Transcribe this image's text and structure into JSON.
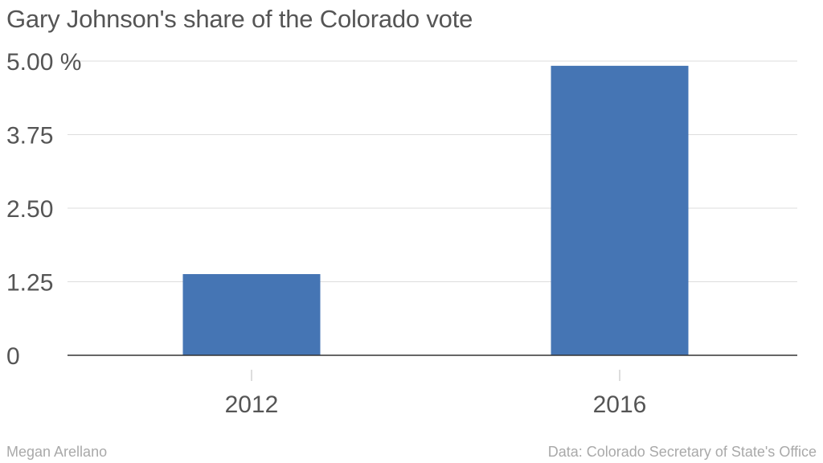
{
  "chart_data": {
    "type": "bar",
    "title": "Gary Johnson's share of the Colorado vote",
    "categories": [
      "2012",
      "2016"
    ],
    "values": [
      1.38,
      4.92
    ],
    "ylim": [
      0,
      5
    ],
    "yticks": [
      0,
      1.25,
      2.5,
      3.75,
      5
    ],
    "ytick_labels": [
      "0",
      "1.25",
      "2.50",
      "3.75",
      "5.00 %"
    ],
    "xlabel": "",
    "ylabel": "",
    "grid": true,
    "bar_color": "#4575b4",
    "grid_color": "#dddddd",
    "axis_color": "#333333"
  },
  "credits": {
    "author": "Megan Arellano",
    "source": "Data: Colorado Secretary of State's Office"
  }
}
